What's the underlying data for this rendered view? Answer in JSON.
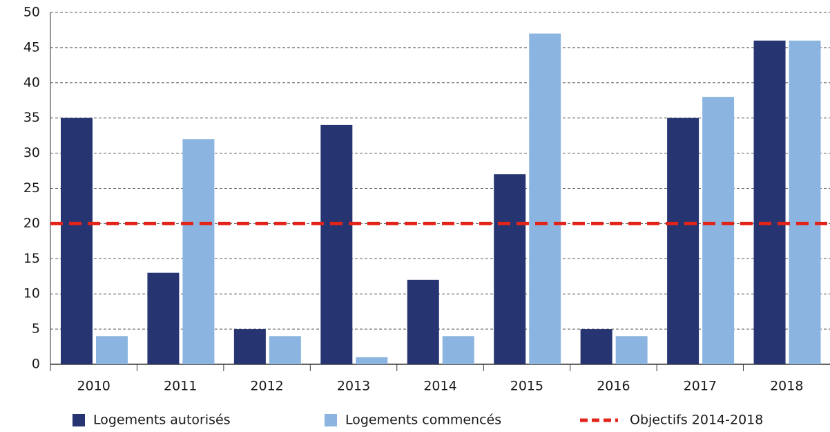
{
  "chart_data": {
    "type": "bar",
    "categories": [
      "2010",
      "2011",
      "2012",
      "2013",
      "2014",
      "2015",
      "2016",
      "2017",
      "2018"
    ],
    "series": [
      {
        "name": "Logements autorisés",
        "color": "#263571",
        "values": [
          35,
          13,
          5,
          34,
          12,
          27,
          5,
          35,
          46
        ]
      },
      {
        "name": "Logements commencés",
        "color": "#8bb5e0",
        "values": [
          4,
          32,
          4,
          1,
          4,
          47,
          4,
          38,
          46
        ]
      }
    ],
    "reference_line": {
      "name": "Objectifs 2014-2018",
      "value": 20,
      "color": "#e2231a"
    },
    "ylim": [
      0,
      50
    ],
    "yticks": [
      0,
      5,
      10,
      15,
      20,
      25,
      30,
      35,
      40,
      45,
      50
    ],
    "grid": true
  }
}
